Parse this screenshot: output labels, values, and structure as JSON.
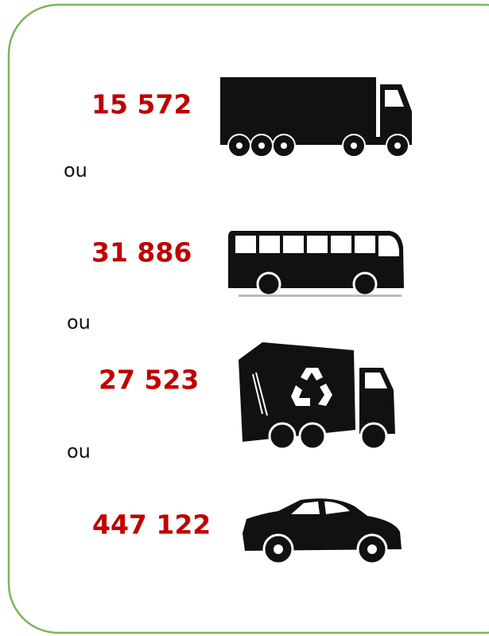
{
  "items": [
    {
      "value": "15 572"
    },
    {
      "value": "31 886"
    },
    {
      "value": "27 523"
    },
    {
      "value": "447 122"
    }
  ],
  "separators": [
    "ou",
    "ou",
    "ou"
  ]
}
